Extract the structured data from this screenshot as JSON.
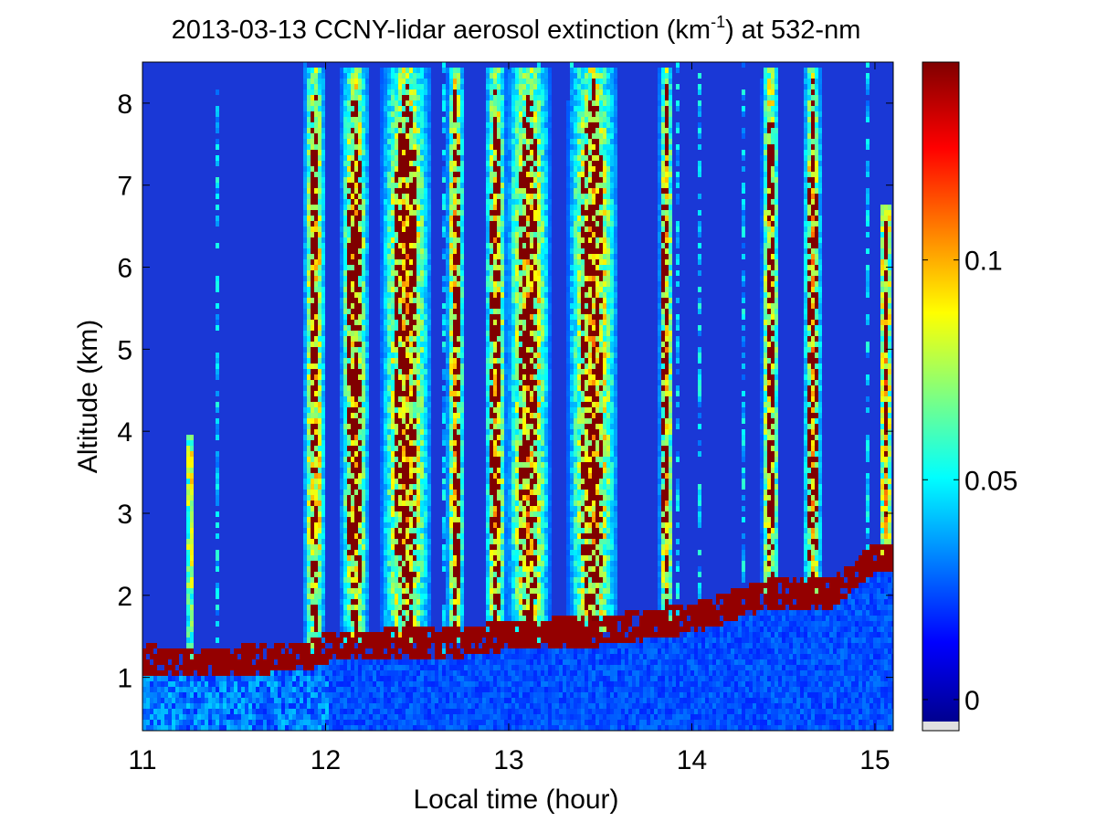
{
  "chart_data": {
    "type": "heatmap",
    "title_main": "2013-03-13 CCNY-lidar aerosol extinction (km",
    "title_sup": "-1",
    "title_tail": ") at 532-nm",
    "xlabel": "Local time (hour)",
    "ylabel": "Altitude (km)",
    "xlim": [
      11,
      15.1
    ],
    "ylim": [
      0.35,
      8.5
    ],
    "xticks": [
      11,
      12,
      13,
      14,
      15
    ],
    "yticks": [
      1,
      2,
      3,
      4,
      5,
      6,
      7,
      8
    ],
    "colorbar": {
      "range": [
        -0.005,
        0.145
      ],
      "ticks": [
        0,
        0.05,
        0.1
      ],
      "tick_labels": [
        "0",
        "0.05",
        "0.1"
      ],
      "colormap": "jet"
    },
    "cloud_base_layer": [
      {
        "t": 11.0,
        "z": 1.25
      },
      {
        "t": 11.3,
        "z": 1.2
      },
      {
        "t": 11.9,
        "z": 1.3
      },
      {
        "t": 12.0,
        "z": 1.4
      },
      {
        "t": 12.4,
        "z": 1.45
      },
      {
        "t": 12.7,
        "z": 1.45
      },
      {
        "t": 13.0,
        "z": 1.55
      },
      {
        "t": 13.5,
        "z": 1.6
      },
      {
        "t": 14.0,
        "z": 1.75
      },
      {
        "t": 14.4,
        "z": 2.05
      },
      {
        "t": 14.75,
        "z": 2.05
      },
      {
        "t": 15.0,
        "z": 2.5
      },
      {
        "t": 15.1,
        "z": 2.5
      }
    ]
  }
}
